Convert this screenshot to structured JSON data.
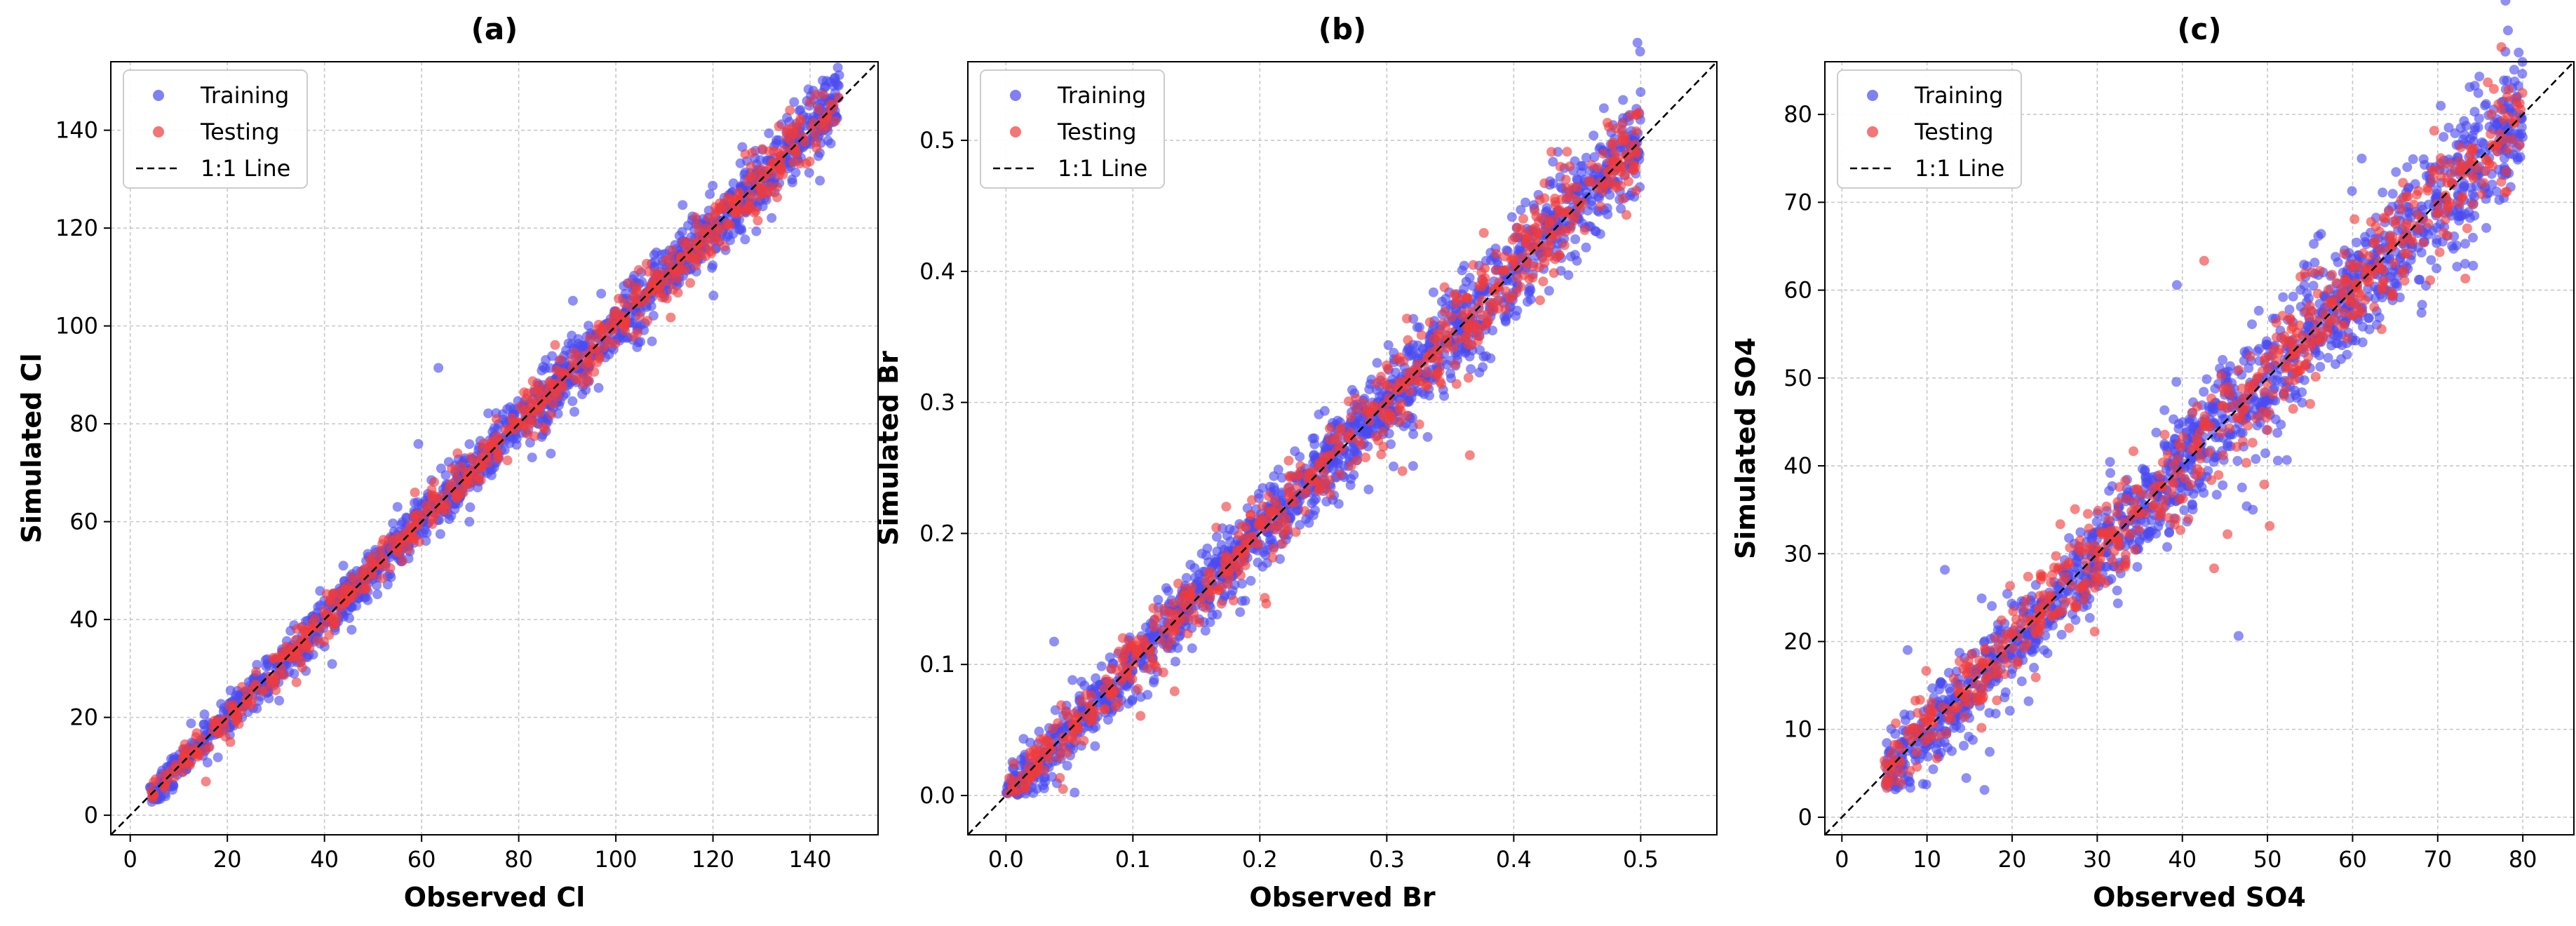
{
  "chart_data": [
    {
      "type": "scatter",
      "panel_label": "(a)",
      "xlabel": "Observed Cl",
      "ylabel": "Simulated Cl",
      "xlim": [
        -4,
        154
      ],
      "ylim": [
        -4,
        154
      ],
      "xticks": [
        0,
        20,
        40,
        60,
        80,
        100,
        120,
        140
      ],
      "yticks": [
        0,
        20,
        40,
        60,
        80,
        100,
        120,
        140
      ],
      "tick_labels": [
        "0",
        "20",
        "40",
        "60",
        "80",
        "100",
        "120",
        "140"
      ],
      "data_range": [
        4,
        146
      ],
      "grid": true,
      "legend_position": "top-left",
      "series": [
        {
          "name": "Training",
          "color": "#4a4af0",
          "n_points": 1500,
          "spread": 0.022
        },
        {
          "name": "Testing",
          "color": "#f03a3a",
          "n_points": 650,
          "spread": 0.02
        }
      ],
      "reference_line": {
        "name": "1:1 Line",
        "style": "dashed",
        "color": "#000000"
      }
    },
    {
      "type": "scatter",
      "panel_label": "(b)",
      "xlabel": "Observed Br",
      "ylabel": "Simulated Br",
      "xlim": [
        -0.03,
        0.56
      ],
      "ylim": [
        -0.03,
        0.56
      ],
      "xticks": [
        0.0,
        0.1,
        0.2,
        0.3,
        0.4,
        0.5
      ],
      "yticks": [
        0.0,
        0.1,
        0.2,
        0.3,
        0.4,
        0.5
      ],
      "tick_labels": [
        "0.0",
        "0.1",
        "0.2",
        "0.3",
        "0.4",
        "0.5"
      ],
      "data_range": [
        0.0,
        0.5
      ],
      "grid": true,
      "legend_position": "top-left",
      "series": [
        {
          "name": "Training",
          "color": "#4a4af0",
          "n_points": 1500,
          "spread": 0.035
        },
        {
          "name": "Testing",
          "color": "#f03a3a",
          "n_points": 650,
          "spread": 0.032
        }
      ],
      "reference_line": {
        "name": "1:1 Line",
        "style": "dashed",
        "color": "#000000"
      }
    },
    {
      "type": "scatter",
      "panel_label": "(c)",
      "xlabel": "Observed SO4",
      "ylabel": "Simulated SO4",
      "xlim": [
        -2,
        86
      ],
      "ylim": [
        -2,
        86
      ],
      "xticks": [
        0,
        10,
        20,
        30,
        40,
        50,
        60,
        70,
        80
      ],
      "yticks": [
        0,
        10,
        20,
        30,
        40,
        50,
        60,
        70,
        80
      ],
      "tick_labels": [
        "0",
        "10",
        "20",
        "30",
        "40",
        "50",
        "60",
        "70",
        "80"
      ],
      "data_range": [
        5,
        80
      ],
      "grid": true,
      "legend_position": "top-left",
      "series": [
        {
          "name": "Training",
          "color": "#4a4af0",
          "n_points": 1500,
          "spread": 0.045
        },
        {
          "name": "Testing",
          "color": "#f03a3a",
          "n_points": 650,
          "spread": 0.04
        }
      ],
      "reference_line": {
        "name": "1:1 Line",
        "style": "dashed",
        "color": "#000000"
      }
    }
  ]
}
